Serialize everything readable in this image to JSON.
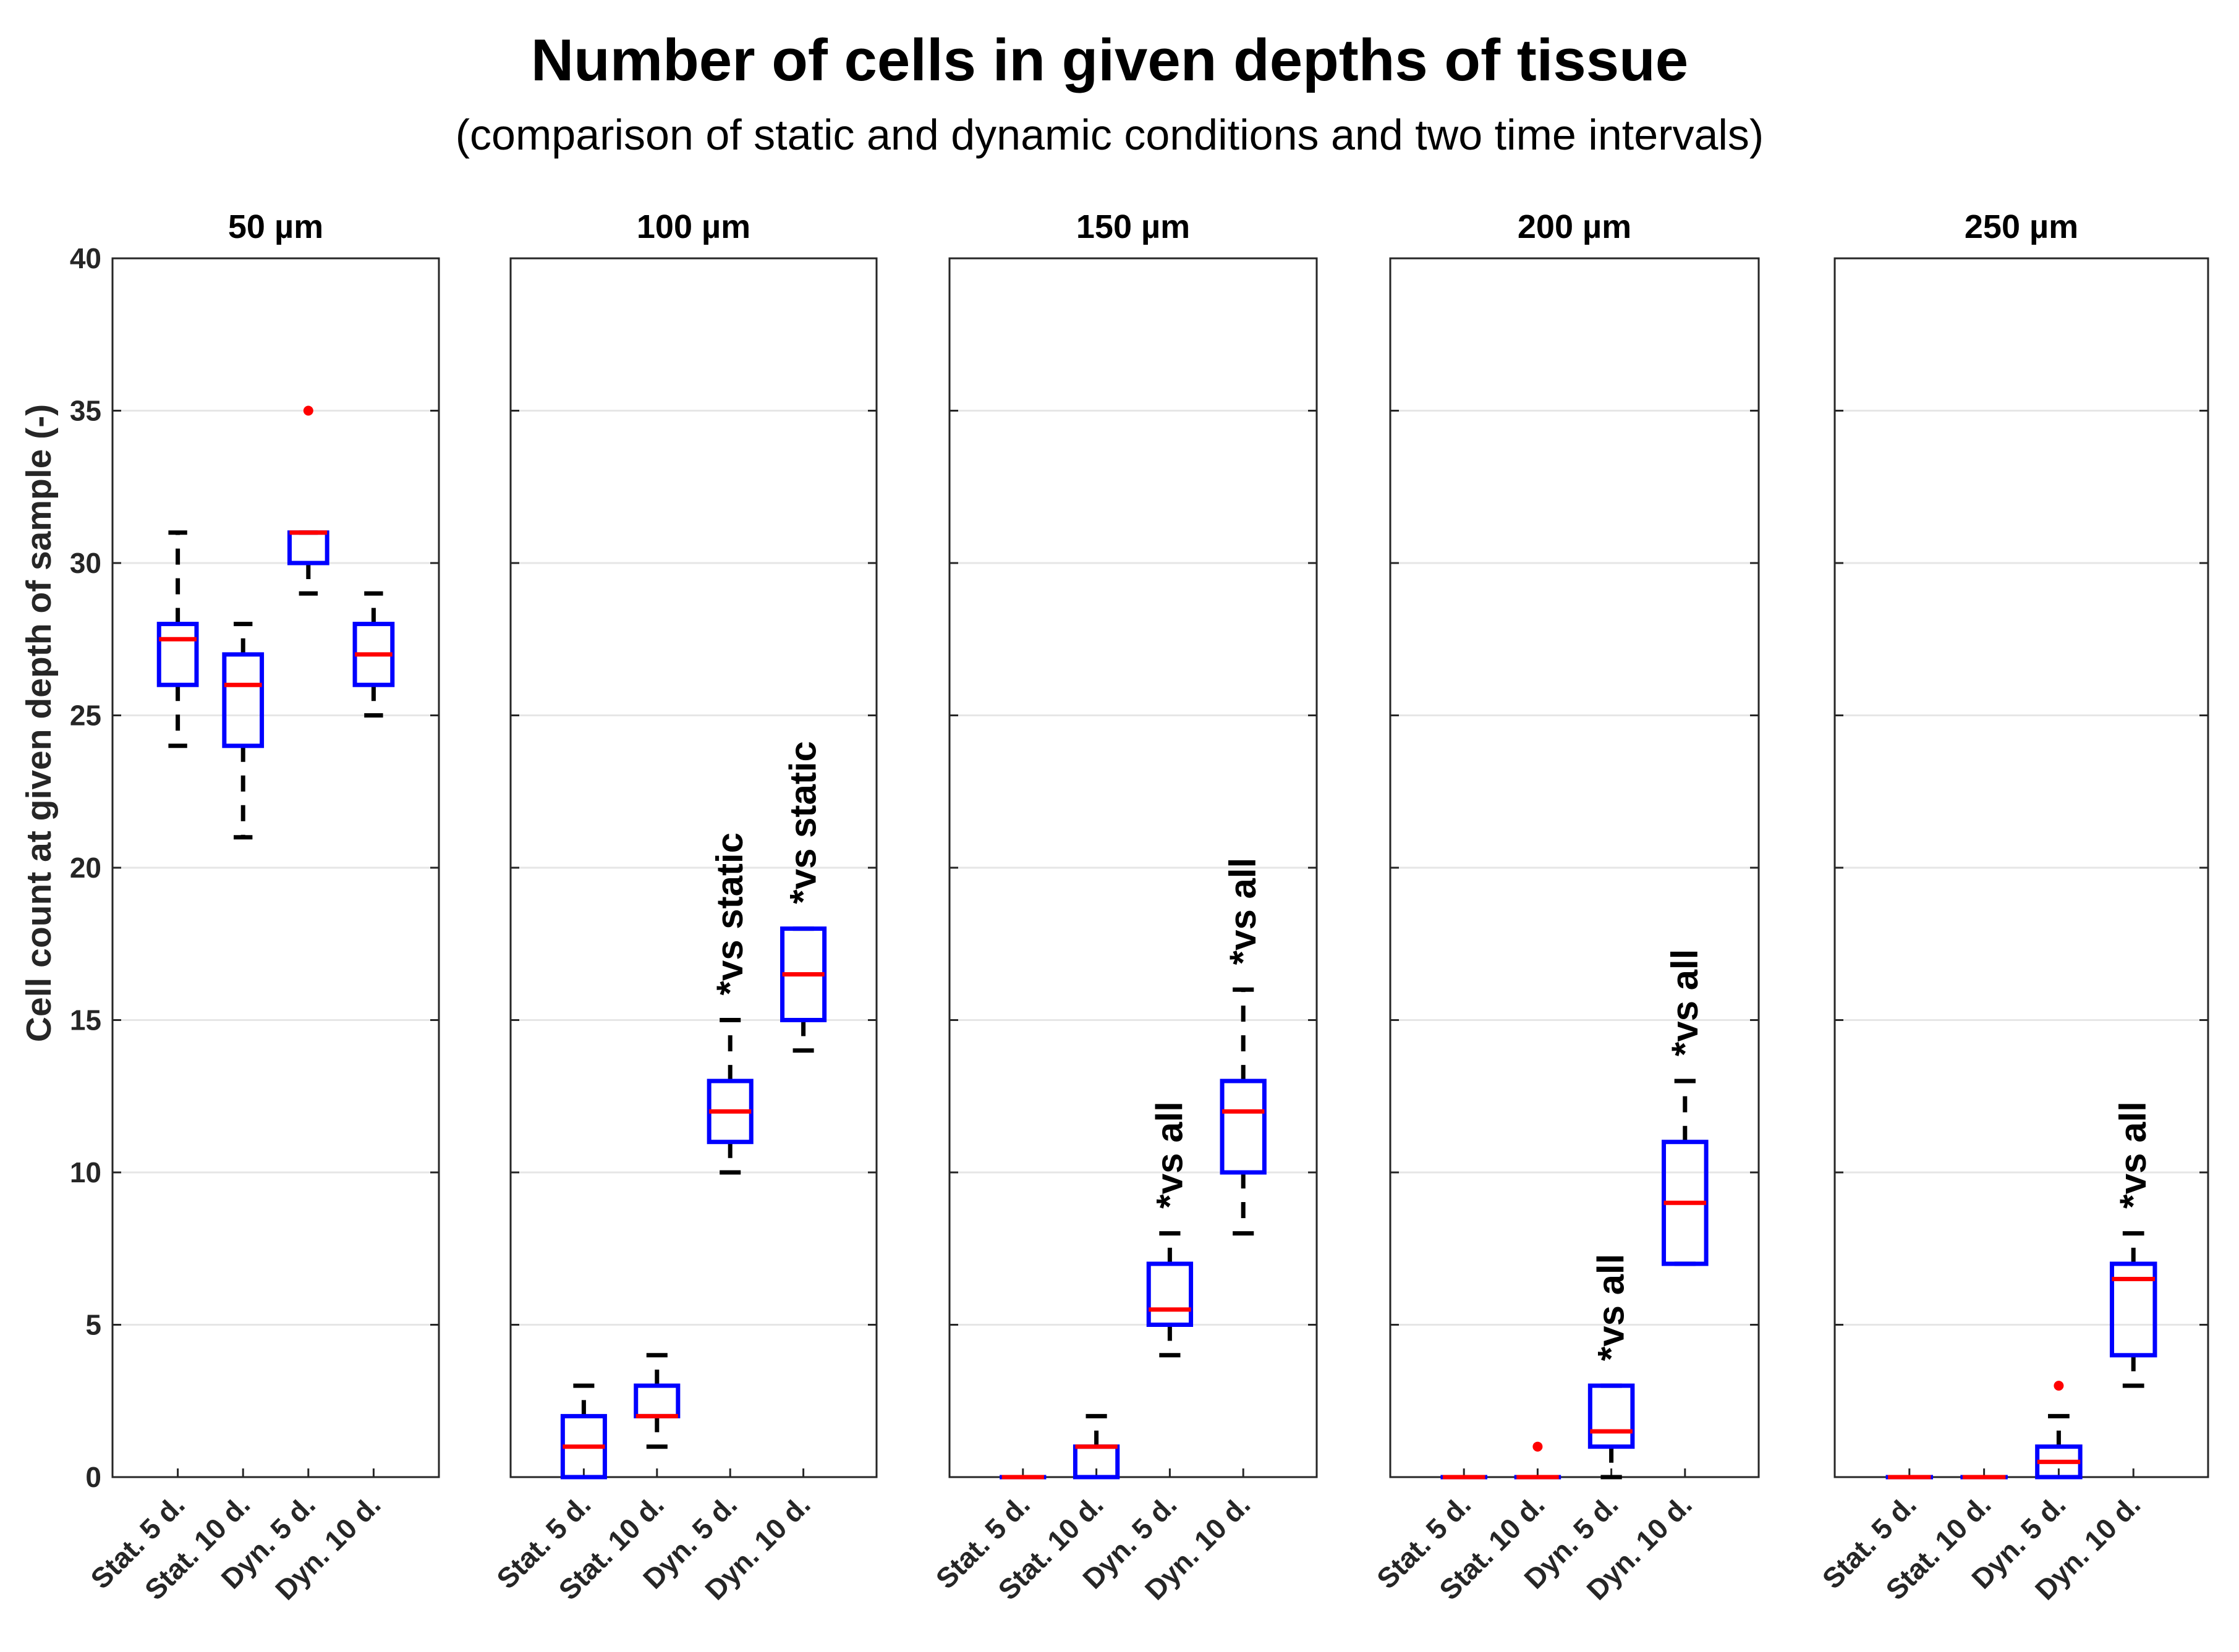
{
  "chart_data": {
    "type": "box",
    "title": "Number of cells in given depths of tissue",
    "subtitle": "(comparison of static and dynamic conditions and two time intervals)",
    "ylabel": "Cell count at given depth of sample (-)",
    "ylim": [
      0,
      40
    ],
    "yticks": [
      0,
      5,
      10,
      15,
      20,
      25,
      30,
      35,
      40
    ],
    "grid": "horizontal",
    "categories": [
      "Stat. 5 d.",
      "Stat. 10 d.",
      "Dyn. 5 d.",
      "Dyn. 10 d."
    ],
    "colors": {
      "box": "#0000ff",
      "median": "#ff0000",
      "whisker": "#000000",
      "outlier": "#ff0000",
      "grid": "#e6e6e6",
      "axis": "#262626"
    },
    "panels": [
      {
        "title": "50 µm",
        "boxes": [
          {
            "q1": 26,
            "median": 27.5,
            "q3": 28,
            "whisker_low": 24,
            "whisker_high": 31,
            "outliers": [],
            "annotation": ""
          },
          {
            "q1": 24,
            "median": 26,
            "q3": 27,
            "whisker_low": 21,
            "whisker_high": 28,
            "outliers": [],
            "annotation": ""
          },
          {
            "q1": 30,
            "median": 31,
            "q3": 31,
            "whisker_low": 29,
            "whisker_high": 31,
            "outliers": [
              35
            ],
            "annotation": ""
          },
          {
            "q1": 26,
            "median": 27,
            "q3": 28,
            "whisker_low": 25,
            "whisker_high": 29,
            "outliers": [],
            "annotation": ""
          }
        ]
      },
      {
        "title": "100 µm",
        "boxes": [
          {
            "q1": 0,
            "median": 1,
            "q3": 2,
            "whisker_low": 0,
            "whisker_high": 3,
            "outliers": [],
            "annotation": ""
          },
          {
            "q1": 2,
            "median": 2,
            "q3": 3,
            "whisker_low": 1,
            "whisker_high": 4,
            "outliers": [],
            "annotation": ""
          },
          {
            "q1": 11,
            "median": 12,
            "q3": 13,
            "whisker_low": 10,
            "whisker_high": 15,
            "outliers": [],
            "annotation": "*vs static"
          },
          {
            "q1": 15,
            "median": 16.5,
            "q3": 18,
            "whisker_low": 14,
            "whisker_high": 18,
            "outliers": [],
            "annotation": "*vs static"
          }
        ]
      },
      {
        "title": "150 µm",
        "boxes": [
          {
            "q1": 0,
            "median": 0,
            "q3": 0,
            "whisker_low": 0,
            "whisker_high": 0,
            "outliers": [],
            "annotation": ""
          },
          {
            "q1": 0,
            "median": 1,
            "q3": 1,
            "whisker_low": 0,
            "whisker_high": 2,
            "outliers": [],
            "annotation": ""
          },
          {
            "q1": 5,
            "median": 5.5,
            "q3": 7,
            "whisker_low": 4,
            "whisker_high": 8,
            "outliers": [],
            "annotation": "*vs all"
          },
          {
            "q1": 10,
            "median": 12,
            "q3": 13,
            "whisker_low": 8,
            "whisker_high": 16,
            "outliers": [],
            "annotation": "*vs all"
          }
        ]
      },
      {
        "title": "200 µm",
        "boxes": [
          {
            "q1": 0,
            "median": 0,
            "q3": 0,
            "whisker_low": 0,
            "whisker_high": 0,
            "outliers": [],
            "annotation": ""
          },
          {
            "q1": 0,
            "median": 0,
            "q3": 0,
            "whisker_low": 0,
            "whisker_high": 0,
            "outliers": [
              1
            ],
            "annotation": ""
          },
          {
            "q1": 1,
            "median": 1.5,
            "q3": 3,
            "whisker_low": 0,
            "whisker_high": 3,
            "outliers": [],
            "annotation": "*vs all"
          },
          {
            "q1": 7,
            "median": 9,
            "q3": 11,
            "whisker_low": 7,
            "whisker_high": 13,
            "outliers": [],
            "annotation": "*vs all"
          }
        ]
      },
      {
        "title": "250 µm",
        "boxes": [
          {
            "q1": 0,
            "median": 0,
            "q3": 0,
            "whisker_low": 0,
            "whisker_high": 0,
            "outliers": [],
            "annotation": ""
          },
          {
            "q1": 0,
            "median": 0,
            "q3": 0,
            "whisker_low": 0,
            "whisker_high": 0,
            "outliers": [],
            "annotation": ""
          },
          {
            "q1": 0,
            "median": 0.5,
            "q3": 1,
            "whisker_low": 0,
            "whisker_high": 2,
            "outliers": [
              3
            ],
            "annotation": ""
          },
          {
            "q1": 4,
            "median": 6.5,
            "q3": 7,
            "whisker_low": 3,
            "whisker_high": 8,
            "outliers": [],
            "annotation": "*vs all"
          }
        ]
      }
    ]
  }
}
